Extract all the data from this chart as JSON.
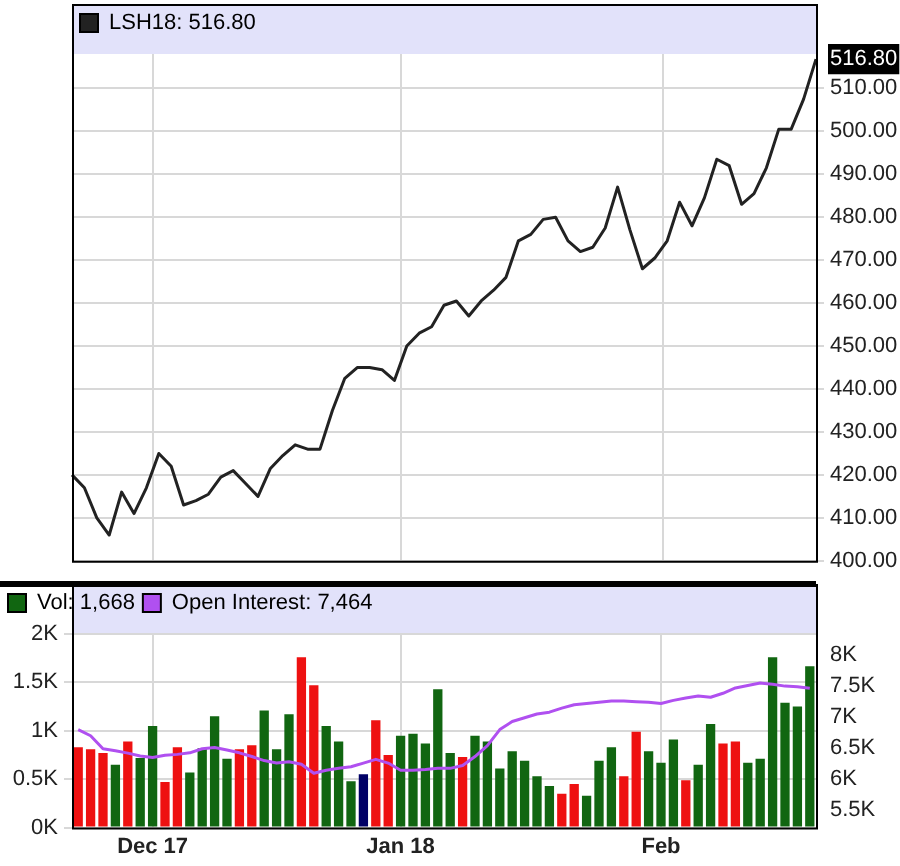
{
  "chart_data": [
    {
      "type": "line",
      "categories": [
        null,
        null,
        null,
        null,
        null,
        null,
        null,
        null,
        null,
        null,
        null,
        null,
        null,
        null,
        null,
        null,
        null,
        null,
        null,
        null,
        null,
        null,
        null,
        null,
        null,
        null,
        null,
        null,
        null,
        null,
        null,
        null,
        null,
        null,
        null,
        null,
        null,
        null,
        null,
        null,
        null,
        null,
        null,
        null,
        null,
        null,
        null,
        null,
        null,
        null,
        null,
        null,
        null,
        null,
        null,
        null,
        null,
        null,
        null,
        null,
        null
      ],
      "series": [
        {
          "name": "LSH18: 516.80",
          "color": "#222222",
          "values": [
            420,
            417,
            410,
            406,
            416,
            411,
            417,
            425,
            422,
            413,
            414,
            415.5,
            419.5,
            421,
            418,
            415,
            421.5,
            424.5,
            427,
            426,
            426,
            435,
            442.5,
            445,
            445,
            444.5,
            442,
            450,
            453,
            454.5,
            459.5,
            460.5,
            457,
            460.5,
            463,
            466,
            474.5,
            476,
            479.5,
            480,
            474.5,
            472,
            473,
            477.5,
            487,
            477,
            468,
            470.5,
            474.5,
            483.5,
            478,
            484.5,
            493.5,
            492,
            483,
            485.5,
            491.5,
            500.5,
            500.5,
            507.5,
            516.8
          ]
        }
      ],
      "ylim": [
        400,
        518
      ],
      "yticks": [
        {
          "value": 400,
          "label": "400.00"
        },
        {
          "value": 410,
          "label": "410.00"
        },
        {
          "value": 420,
          "label": "420.00"
        },
        {
          "value": 430,
          "label": "430.00"
        },
        {
          "value": 440,
          "label": "440.00"
        },
        {
          "value": 450,
          "label": "450.00"
        },
        {
          "value": 460,
          "label": "460.00"
        },
        {
          "value": 470,
          "label": "470.00"
        },
        {
          "value": 480,
          "label": "480.00"
        },
        {
          "value": 490,
          "label": "490.00"
        },
        {
          "value": 500,
          "label": "500.00"
        },
        {
          "value": 510,
          "label": "510.00"
        },
        {
          "value": 516.8,
          "label": "516.80"
        }
      ],
      "grid": true,
      "legend": "top left",
      "marker": "none"
    },
    {
      "type": "bar",
      "categories": [
        null,
        null,
        null,
        null,
        null,
        null,
        "Dec 17",
        null,
        null,
        null,
        null,
        null,
        null,
        null,
        null,
        null,
        null,
        null,
        null,
        null,
        null,
        null,
        null,
        null,
        null,
        null,
        "Jan 18",
        null,
        null,
        null,
        null,
        null,
        null,
        null,
        null,
        null,
        null,
        null,
        null,
        null,
        null,
        null,
        null,
        null,
        null,
        null,
        null,
        "Feb",
        null,
        null,
        null,
        null,
        null,
        null,
        null,
        null,
        null,
        null,
        null,
        null
      ],
      "series": [
        {
          "name": "Vol: 1,668",
          "color": "#116611",
          "colors": [
            "#ee1111",
            "#ee1111",
            "#ee1111",
            "#116611",
            "#ee1111",
            "#116611",
            "#116611",
            "#ee1111",
            "#ee1111",
            "#116611",
            "#116611",
            "#116611",
            "#116611",
            "#ee1111",
            "#ee1111",
            "#116611",
            "#116611",
            "#116611",
            "#ee1111",
            "#ee1111",
            "#116611",
            "#116611",
            "#116611",
            "#000066",
            "#ee1111",
            "#ee1111",
            "#116611",
            "#116611",
            "#116611",
            "#116611",
            "#116611",
            "#ee1111",
            "#116611",
            "#116611",
            "#116611",
            "#116611",
            "#116611",
            "#116611",
            "#116611",
            "#ee1111",
            "#ee1111",
            "#116611",
            "#116611",
            "#116611",
            "#ee1111",
            "#ee1111",
            "#116611",
            "#116611",
            "#116611",
            "#ee1111",
            "#116611",
            "#116611",
            "#ee1111",
            "#ee1111",
            "#116611",
            "#116611",
            "#116611",
            "#116611",
            "#116611",
            "#116611"
          ],
          "values": [
            830,
            810,
            770,
            650,
            890,
            720,
            1050,
            470,
            830,
            570,
            820,
            1150,
            710,
            810,
            850,
            1210,
            810,
            1170,
            1760,
            1470,
            1050,
            890,
            480,
            550,
            1110,
            750,
            950,
            970,
            870,
            1430,
            770,
            730,
            950,
            890,
            610,
            790,
            690,
            530,
            430,
            350,
            450,
            330,
            690,
            830,
            530,
            990,
            790,
            670,
            910,
            490,
            650,
            1070,
            870,
            890,
            670,
            710,
            1760,
            1290,
            1250,
            1668
          ]
        },
        {
          "name": "Open Interest: 7,464",
          "type": "line",
          "axis": "y2",
          "color": "#b050f0",
          "values": [
            6800,
            6700,
            6490,
            6460,
            6420,
            6375,
            6350,
            6385,
            6400,
            6425,
            6490,
            6510,
            6470,
            6425,
            6365,
            6300,
            6260,
            6280,
            6240,
            6095,
            6145,
            6175,
            6200,
            6260,
            6320,
            6260,
            6145,
            6145,
            6155,
            6175,
            6175,
            6220,
            6365,
            6540,
            6800,
            6930,
            6990,
            7050,
            7080,
            7145,
            7200,
            7220,
            7240,
            7260,
            7260,
            7250,
            7240,
            7220,
            7270,
            7310,
            7340,
            7320,
            7385,
            7470,
            7510,
            7550,
            7530,
            7500,
            7490,
            7464
          ]
        }
      ],
      "ylim": [
        0,
        2000
      ],
      "yticks": [
        {
          "value": 0,
          "label": "0K"
        },
        {
          "value": 500,
          "label": "0.5K"
        },
        {
          "value": 1000,
          "label": "1K"
        },
        {
          "value": 1500,
          "label": "1.5K"
        },
        {
          "value": 2000,
          "label": "2K"
        }
      ],
      "y2lim": [
        5220,
        8340
      ],
      "y2ticks": [
        {
          "value": 5500,
          "label": "5.5K"
        },
        {
          "value": 6000,
          "label": "6K"
        },
        {
          "value": 6500,
          "label": "6.5K"
        },
        {
          "value": 7000,
          "label": "7K"
        },
        {
          "value": 7500,
          "label": "7.5K"
        },
        {
          "value": 8000,
          "label": "8K"
        }
      ],
      "grid": true,
      "legend": "top left",
      "marker": "none"
    }
  ]
}
